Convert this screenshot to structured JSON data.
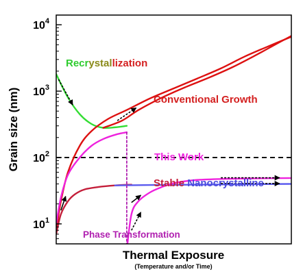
{
  "chart_data": {
    "type": "line",
    "xlabel": "Thermal Exposure",
    "xlabel_sub": "(Temperature and/or Time)",
    "ylabel": "Grain size (nm)",
    "yscale": "log",
    "ylim": [
      5,
      14000
    ],
    "xlim": [
      0,
      1
    ],
    "xticks_shown": false,
    "yticks": [
      {
        "value": 10,
        "base": "10",
        "exp": "1"
      },
      {
        "value": 100,
        "base": "10",
        "exp": "2"
      },
      {
        "value": 1000,
        "base": "10",
        "exp": "3"
      },
      {
        "value": 10000,
        "base": "10",
        "exp": "4"
      }
    ],
    "reference_line": {
      "y": 100,
      "style": "dashed",
      "color": "#000000"
    },
    "labels": {
      "recrystallization": {
        "parts": [
          "Recr",
          "ystal",
          "lization"
        ],
        "colors": [
          "#2ecc2e",
          "#8a8a1a",
          "#d42020"
        ]
      },
      "conventional": {
        "text": "Conventional Growth",
        "color": "#d42020"
      },
      "this_work": {
        "text": "This Work",
        "color": "#ee22dd"
      },
      "stable": {
        "text": "Stable",
        "color": "#c41e3a"
      },
      "nanocrystalline": {
        "text": "Nanocrystalline",
        "color": "#4b4bdd"
      },
      "phase_transformation": {
        "text": "Phase Transformation",
        "color": "#b020b0"
      }
    },
    "series": [
      {
        "key": "recryst",
        "color": "#33dd33",
        "points": [
          [
            0,
            1800
          ],
          [
            0.05,
            800
          ],
          [
            0.1,
            450
          ],
          [
            0.15,
            320
          ],
          [
            0.2,
            280
          ],
          [
            0.25,
            285
          ],
          [
            0.3,
            300
          ]
        ]
      },
      {
        "key": "conv_top",
        "color": "#dd1111",
        "points": [
          [
            0.2,
            280
          ],
          [
            0.28,
            360
          ],
          [
            0.35,
            520
          ],
          [
            0.45,
            800
          ],
          [
            0.55,
            1150
          ],
          [
            0.65,
            1600
          ],
          [
            0.75,
            2300
          ],
          [
            0.85,
            3500
          ],
          [
            0.93,
            5000
          ],
          [
            1.0,
            6800
          ]
        ]
      },
      {
        "key": "conv_lower",
        "color": "#dd1111",
        "points": [
          [
            0,
            8
          ],
          [
            0.02,
            22
          ],
          [
            0.05,
            60
          ],
          [
            0.1,
            150
          ],
          [
            0.15,
            250
          ],
          [
            0.22,
            380
          ],
          [
            0.3,
            520
          ],
          [
            0.4,
            780
          ],
          [
            0.5,
            1100
          ],
          [
            0.6,
            1550
          ],
          [
            0.7,
            2200
          ],
          [
            0.8,
            3300
          ],
          [
            0.9,
            4700
          ],
          [
            1.0,
            6600
          ]
        ]
      },
      {
        "key": "this_work_rise",
        "color": "#ee22dd",
        "points": [
          [
            0,
            10
          ],
          [
            0.02,
            25
          ],
          [
            0.05,
            55
          ],
          [
            0.1,
            100
          ],
          [
            0.15,
            150
          ],
          [
            0.2,
            190
          ],
          [
            0.26,
            225
          ],
          [
            0.3,
            240
          ]
        ]
      },
      {
        "key": "stable_red",
        "color": "#c41e3a",
        "points": [
          [
            0,
            7
          ],
          [
            0.02,
            14
          ],
          [
            0.05,
            22
          ],
          [
            0.08,
            28
          ],
          [
            0.12,
            33
          ],
          [
            0.18,
            36
          ],
          [
            0.25,
            38
          ],
          [
            0.32,
            39
          ]
        ]
      },
      {
        "key": "nano_blue",
        "color": "#5b5bee",
        "points": [
          [
            0.25,
            38
          ],
          [
            0.4,
            38.5
          ],
          [
            0.6,
            39
          ],
          [
            0.8,
            39.5
          ],
          [
            1.0,
            40
          ]
        ]
      },
      {
        "key": "phase_rise",
        "color": "#ee22dd",
        "points": [
          [
            0.3,
            4
          ],
          [
            0.32,
            14
          ],
          [
            0.35,
            22
          ],
          [
            0.4,
            30
          ],
          [
            0.45,
            36
          ],
          [
            0.5,
            41
          ],
          [
            0.55,
            44
          ],
          [
            0.6,
            46
          ],
          [
            0.7,
            47.5
          ],
          [
            0.85,
            48.5
          ],
          [
            1.0,
            49
          ]
        ]
      },
      {
        "key": "phase_drop",
        "color": "#b020b0",
        "style": "dashed",
        "points": [
          [
            0.3,
            240
          ],
          [
            0.3,
            4.2
          ]
        ]
      }
    ],
    "arrows": [
      {
        "from": [
          0.01,
          1500
        ],
        "to": [
          0.07,
          620
        ],
        "style": "dashed"
      },
      {
        "from": [
          0.26,
          360
        ],
        "to": [
          0.34,
          560
        ],
        "style": "dashed"
      },
      {
        "from": [
          0.02,
          16
        ],
        "to": [
          0.04,
          26
        ],
        "style": "solid"
      },
      {
        "from": [
          0.32,
          21
        ],
        "to": [
          0.36,
          27
        ],
        "style": "solid"
      },
      {
        "from": [
          0.32,
          8
        ],
        "to": [
          0.36,
          15
        ],
        "style": "dashed"
      },
      {
        "from": [
          0.7,
          49.5
        ],
        "to": [
          0.95,
          49.5
        ],
        "style": "dashed"
      },
      {
        "from": [
          0.7,
          40.5
        ],
        "to": [
          0.95,
          40.5
        ],
        "style": "dashed"
      }
    ]
  }
}
